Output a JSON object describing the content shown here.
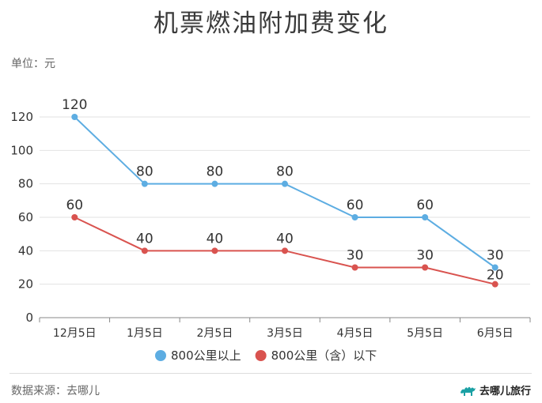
{
  "header": {
    "title": "机票燃油附加费变化",
    "unit": "单位：元"
  },
  "footer": {
    "source": "数据来源：去哪儿",
    "brand": "去哪儿旅行",
    "brand_icon": "camel-logo-icon"
  },
  "colors": {
    "series_above": "#5dade2",
    "series_below": "#d9534f",
    "grid": "#e2e2e2",
    "axis": "#888888",
    "text": "#333333"
  },
  "chart_data": {
    "type": "line",
    "categories": [
      "12月5日",
      "1月5日",
      "2月5日",
      "3月5日",
      "4月5日",
      "5月5日",
      "6月5日"
    ],
    "series": [
      {
        "name": "800公里以上",
        "values": [
          120,
          80,
          80,
          80,
          60,
          60,
          30
        ]
      },
      {
        "name": "800公里（含）以下",
        "values": [
          60,
          40,
          40,
          40,
          30,
          30,
          20
        ]
      }
    ],
    "ylim": [
      0,
      120
    ],
    "yticks": [
      0,
      20,
      40,
      60,
      80,
      100,
      120
    ],
    "data_labels": true,
    "grid": true,
    "legend_position": "bottom"
  }
}
